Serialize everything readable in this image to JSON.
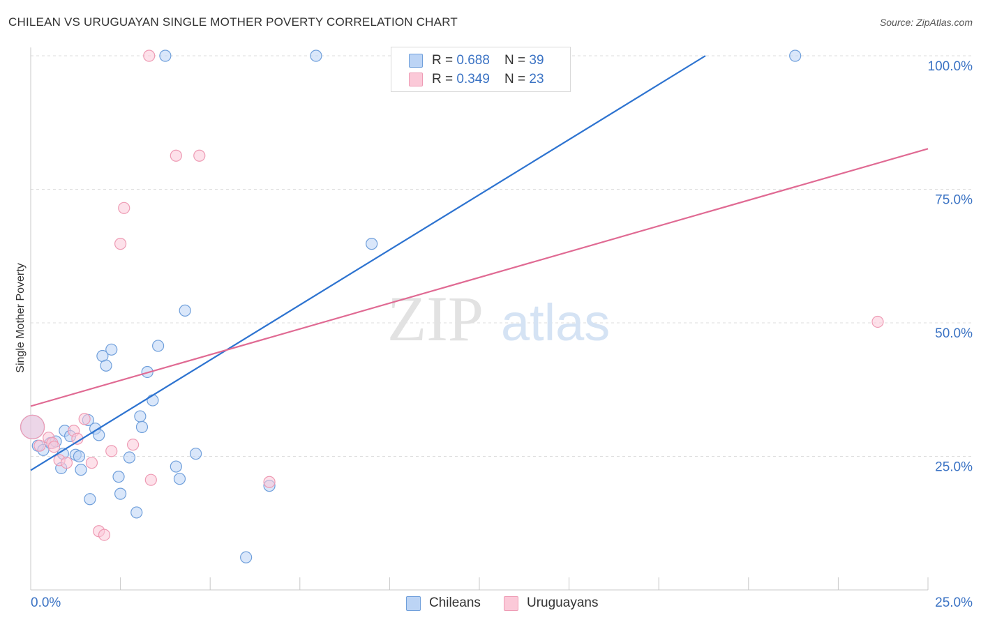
{
  "title": "CHILEAN VS URUGUAYAN SINGLE MOTHER POVERTY CORRELATION CHART",
  "source": "Source: ZipAtlas.com",
  "legend_top": {
    "series1": {
      "r_label": "R = ",
      "r_value": "0.688",
      "n_label": "N = ",
      "n_value": "39"
    },
    "series2": {
      "r_label": "R = ",
      "r_value": "0.349",
      "n_label": "N = ",
      "n_value": "23"
    }
  },
  "legend_bottom": {
    "series1": "Chileans",
    "series2": "Uruguayans"
  },
  "watermark": {
    "zip": "ZIP",
    "atlas": "atlas"
  },
  "colors": {
    "chileans_fill": "#bcd4f5",
    "chileans_stroke": "#6f9fdb",
    "chileans_line": "#2d73d0",
    "uruguayans_fill": "#fbc9d8",
    "uruguayans_stroke": "#ee9bb4",
    "uruguayans_line": "#e06a93",
    "tick_label": "#3b73c4",
    "grid": "#dedede"
  },
  "chart_data": {
    "type": "scatter",
    "title": "CHILEAN VS URUGUAYAN SINGLE MOTHER POVERTY CORRELATION CHART",
    "xlabel": "",
    "ylabel": "Single Mother Poverty",
    "xlim": [
      0,
      25
    ],
    "ylim": [
      0,
      102
    ],
    "x_tick_labels": [
      {
        "value": 0,
        "label": "0.0%"
      },
      {
        "value": 25,
        "label": "25.0%"
      }
    ],
    "y_tick_labels": [
      {
        "value": 25,
        "label": "25.0%"
      },
      {
        "value": 50,
        "label": "50.0%"
      },
      {
        "value": 75,
        "label": "75.0%"
      },
      {
        "value": 100,
        "label": "100.0%"
      }
    ],
    "x_minor_ticks": [
      2.5,
      5,
      7.5,
      10,
      12.5,
      15,
      17.5,
      20,
      22.5,
      25
    ],
    "y_gridlines": [
      25,
      50,
      75,
      100
    ],
    "grid": true,
    "legend_position": "top-center",
    "series": [
      {
        "name": "Chileans",
        "R": 0.688,
        "N": 39,
        "trend": {
          "x0": 0,
          "y0": 22.4,
          "x1": 18.8,
          "y1": 100
        },
        "points": [
          {
            "x": 0.05,
            "y": 30.5,
            "s": "large"
          },
          {
            "x": 0.2,
            "y": 27
          },
          {
            "x": 0.35,
            "y": 26.2
          },
          {
            "x": 0.55,
            "y": 27.5
          },
          {
            "x": 0.7,
            "y": 27.8
          },
          {
            "x": 0.9,
            "y": 25.5
          },
          {
            "x": 0.85,
            "y": 22.8
          },
          {
            "x": 0.95,
            "y": 29.8
          },
          {
            "x": 1.1,
            "y": 28.8
          },
          {
            "x": 1.25,
            "y": 25.3
          },
          {
            "x": 1.35,
            "y": 25
          },
          {
            "x": 1.4,
            "y": 22.5
          },
          {
            "x": 1.6,
            "y": 31.8
          },
          {
            "x": 1.65,
            "y": 17
          },
          {
            "x": 1.8,
            "y": 30.2
          },
          {
            "x": 1.9,
            "y": 29
          },
          {
            "x": 2.0,
            "y": 43.8
          },
          {
            "x": 2.1,
            "y": 42
          },
          {
            "x": 2.25,
            "y": 45
          },
          {
            "x": 2.45,
            "y": 21.2
          },
          {
            "x": 2.5,
            "y": 18
          },
          {
            "x": 2.75,
            "y": 24.8
          },
          {
            "x": 2.95,
            "y": 14.5
          },
          {
            "x": 3.05,
            "y": 32.5
          },
          {
            "x": 3.1,
            "y": 30.5
          },
          {
            "x": 3.25,
            "y": 40.8
          },
          {
            "x": 3.4,
            "y": 35.5
          },
          {
            "x": 3.55,
            "y": 45.7
          },
          {
            "x": 3.75,
            "y": 100
          },
          {
            "x": 4.05,
            "y": 23.1
          },
          {
            "x": 4.15,
            "y": 20.8
          },
          {
            "x": 4.3,
            "y": 52.3
          },
          {
            "x": 4.6,
            "y": 25.5
          },
          {
            "x": 6.0,
            "y": 6.1
          },
          {
            "x": 6.65,
            "y": 19.5
          },
          {
            "x": 7.95,
            "y": 100
          },
          {
            "x": 9.5,
            "y": 64.8
          },
          {
            "x": 14.75,
            "y": 100
          },
          {
            "x": 21.3,
            "y": 100
          }
        ]
      },
      {
        "name": "Uruguayans",
        "R": 0.349,
        "N": 23,
        "trend": {
          "x0": 0,
          "y0": 34.4,
          "x1": 25,
          "y1": 82.6
        },
        "points": [
          {
            "x": 0.05,
            "y": 30.5,
            "s": "large"
          },
          {
            "x": 0.25,
            "y": 27
          },
          {
            "x": 0.5,
            "y": 28.5
          },
          {
            "x": 0.6,
            "y": 27.5
          },
          {
            "x": 0.65,
            "y": 26.8
          },
          {
            "x": 0.8,
            "y": 24.3
          },
          {
            "x": 1.0,
            "y": 23.8
          },
          {
            "x": 1.2,
            "y": 29.8
          },
          {
            "x": 1.3,
            "y": 28.3
          },
          {
            "x": 1.5,
            "y": 32
          },
          {
            "x": 1.7,
            "y": 23.8
          },
          {
            "x": 1.9,
            "y": 11
          },
          {
            "x": 2.05,
            "y": 10.3
          },
          {
            "x": 2.25,
            "y": 26
          },
          {
            "x": 2.5,
            "y": 64.8
          },
          {
            "x": 2.6,
            "y": 71.5
          },
          {
            "x": 2.85,
            "y": 27.2
          },
          {
            "x": 3.3,
            "y": 100
          },
          {
            "x": 3.35,
            "y": 20.6
          },
          {
            "x": 4.05,
            "y": 81.3
          },
          {
            "x": 4.7,
            "y": 81.3
          },
          {
            "x": 6.65,
            "y": 20.2
          },
          {
            "x": 11.25,
            "y": 100
          },
          {
            "x": 23.6,
            "y": 50.2
          }
        ]
      }
    ]
  }
}
